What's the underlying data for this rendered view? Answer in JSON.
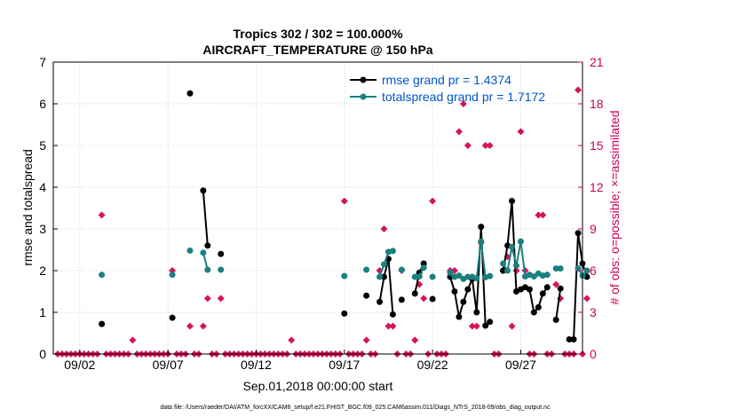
{
  "chart_data": {
    "type": "line",
    "title": "Tropics 302 / 302 = 100.000%",
    "subtitle": "AIRCRAFT_TEMPERATURE @ 150 hPa",
    "xlabel": "Sep.01,2018 00:00:00 start",
    "ylabel": "rmse and totalspread",
    "y2label": "# of obs: o=possible; ×=assimilated",
    "footer": "data file: /Users/raeder/DAI/ATM_forcXX/CAM6_setup/f.e21.FHIST_BGC.f09_025.CAM6assim.011/Diags_NTrS_2018-09/obs_diag_output.nc",
    "xlim": [
      0.5,
      30.5
    ],
    "ylim": [
      0,
      7
    ],
    "y2lim": [
      0,
      21
    ],
    "xticks": [
      {
        "x": 2,
        "label": "09/02"
      },
      {
        "x": 7,
        "label": "09/07"
      },
      {
        "x": 12,
        "label": "09/12"
      },
      {
        "x": 17,
        "label": "09/17"
      },
      {
        "x": 22,
        "label": "09/22"
      },
      {
        "x": 27,
        "label": "09/27"
      }
    ],
    "yticks": [
      "0",
      "1",
      "2",
      "3",
      "4",
      "5",
      "6",
      "7"
    ],
    "y2ticks": [
      "0",
      "3",
      "6",
      "9",
      "12",
      "15",
      "18",
      "21"
    ],
    "legend_position": "top-right",
    "series": [
      {
        "name": "rmse grand pr = 1.4374",
        "color": "#000000",
        "points": [
          [
            3.25,
            0.72
          ],
          [
            7.25,
            0.87
          ],
          [
            8.25,
            6.25
          ],
          [
            9.0,
            3.92
          ],
          [
            9.25,
            2.6
          ],
          [
            10.0,
            2.4
          ],
          [
            17.0,
            0.97
          ],
          [
            18.25,
            1.4
          ],
          [
            19.0,
            1.25
          ],
          [
            19.25,
            1.85
          ],
          [
            19.5,
            2.28
          ],
          [
            19.75,
            0.95
          ],
          [
            20.25,
            1.3
          ],
          [
            21.0,
            1.45
          ],
          [
            21.25,
            1.95
          ],
          [
            21.5,
            2.17
          ],
          [
            22.0,
            1.32
          ],
          [
            23.0,
            1.85
          ],
          [
            23.25,
            1.5
          ],
          [
            23.5,
            0.89
          ],
          [
            23.75,
            1.25
          ],
          [
            24.0,
            1.55
          ],
          [
            24.25,
            1.8
          ],
          [
            24.5,
            1.0
          ],
          [
            24.75,
            3.05
          ],
          [
            25.0,
            0.68
          ],
          [
            25.25,
            0.77
          ],
          [
            26.0,
            2.0
          ],
          [
            26.25,
            2.6
          ],
          [
            26.5,
            3.67
          ],
          [
            26.75,
            1.5
          ],
          [
            27.0,
            1.55
          ],
          [
            27.25,
            1.6
          ],
          [
            27.5,
            1.55
          ],
          [
            27.75,
            1.0
          ],
          [
            28.0,
            1.12
          ],
          [
            28.25,
            1.45
          ],
          [
            28.5,
            1.6
          ],
          [
            29.0,
            0.82
          ],
          [
            29.25,
            1.57
          ],
          [
            29.75,
            0.35
          ],
          [
            30.0,
            0.35
          ],
          [
            30.25,
            2.9
          ],
          [
            30.5,
            2.17
          ],
          [
            30.75,
            1.85
          ]
        ]
      },
      {
        "name": "totalspread grand pr = 1.7172",
        "color": "#1a8080",
        "points": [
          [
            3.25,
            1.9
          ],
          [
            7.25,
            1.9
          ],
          [
            8.25,
            2.48
          ],
          [
            9.0,
            2.43
          ],
          [
            9.25,
            2.02
          ],
          [
            10.0,
            2.02
          ],
          [
            17.0,
            1.87
          ],
          [
            18.25,
            2.02
          ],
          [
            19.0,
            1.85
          ],
          [
            19.25,
            2.15
          ],
          [
            19.5,
            2.45
          ],
          [
            19.75,
            2.47
          ],
          [
            20.25,
            2.02
          ],
          [
            21.0,
            1.85
          ],
          [
            21.25,
            1.86
          ],
          [
            21.5,
            2.07
          ],
          [
            22.0,
            1.85
          ],
          [
            23.0,
            1.95
          ],
          [
            23.25,
            1.85
          ],
          [
            23.5,
            1.88
          ],
          [
            23.75,
            1.8
          ],
          [
            24.0,
            1.85
          ],
          [
            24.25,
            1.85
          ],
          [
            24.5,
            1.82
          ],
          [
            24.75,
            2.7
          ],
          [
            25.0,
            1.84
          ],
          [
            25.25,
            1.87
          ],
          [
            26.0,
            2.17
          ],
          [
            26.25,
            2.0
          ],
          [
            26.5,
            2.57
          ],
          [
            26.75,
            2.12
          ],
          [
            27.0,
            2.7
          ],
          [
            27.25,
            1.86
          ],
          [
            27.5,
            1.9
          ],
          [
            27.75,
            1.86
          ],
          [
            28.0,
            1.93
          ],
          [
            28.25,
            1.88
          ],
          [
            28.5,
            1.9
          ],
          [
            29.0,
            2.05
          ],
          [
            29.25,
            2.05
          ],
          [
            30.25,
            2.05
          ],
          [
            30.5,
            1.88
          ],
          [
            30.75,
            2.0
          ]
        ]
      }
    ],
    "obs_possible": {
      "name": "# of obs possible",
      "color": "#d5145a",
      "points": [
        [
          3.25,
          10
        ],
        [
          5.0,
          1
        ],
        [
          7.25,
          6
        ],
        [
          8.25,
          2
        ],
        [
          9.0,
          2
        ],
        [
          9.25,
          4
        ],
        [
          10.0,
          4
        ],
        [
          14.0,
          1
        ],
        [
          17.0,
          11
        ],
        [
          18.25,
          1
        ],
        [
          19.0,
          6
        ],
        [
          19.25,
          9
        ],
        [
          19.5,
          2
        ],
        [
          19.75,
          2
        ],
        [
          20.25,
          6
        ],
        [
          21.0,
          1
        ],
        [
          21.25,
          5
        ],
        [
          21.5,
          4
        ],
        [
          22.0,
          11
        ],
        [
          23.0,
          6
        ],
        [
          23.25,
          6
        ],
        [
          23.5,
          16
        ],
        [
          23.75,
          18
        ],
        [
          24.0,
          15
        ],
        [
          24.25,
          2
        ],
        [
          24.5,
          2
        ],
        [
          24.75,
          8
        ],
        [
          25.0,
          15
        ],
        [
          25.25,
          15
        ],
        [
          26.0,
          6
        ],
        [
          26.25,
          7
        ],
        [
          26.5,
          2
        ],
        [
          26.75,
          6
        ],
        [
          27.0,
          16
        ],
        [
          27.25,
          6
        ],
        [
          28.0,
          10
        ],
        [
          28.25,
          10
        ],
        [
          29.0,
          5
        ],
        [
          29.25,
          4
        ],
        [
          30.25,
          19
        ],
        [
          30.75,
          4
        ]
      ]
    }
  }
}
